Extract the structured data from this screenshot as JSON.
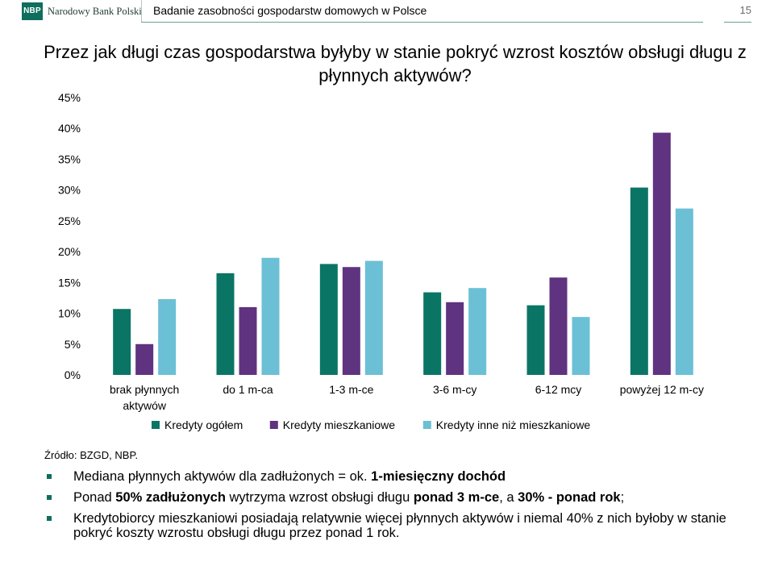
{
  "header": {
    "logo_abbr": "NBP",
    "logo_name": "Narodowy Bank Polski",
    "title": "Badanie zasobności gospodarstw domowych w Polsce",
    "page_number": "15"
  },
  "slide_title": "Przez jak długi czas gospodarstwa byłyby w stanie pokryć wzrost kosztów obsługi długu z płynnych aktywów?",
  "colors": {
    "brand": "#0f6e5e",
    "series1": "#0a7565",
    "series2": "#5f3380",
    "series3": "#6cc0d5"
  },
  "chart_data": {
    "type": "bar",
    "title": "",
    "xlabel": "",
    "ylabel": "",
    "ylim": [
      0,
      45
    ],
    "yticks": [
      "0%",
      "5%",
      "10%",
      "15%",
      "20%",
      "25%",
      "30%",
      "35%",
      "40%",
      "45%"
    ],
    "categories": [
      [
        "brak płynnych",
        "aktywów"
      ],
      [
        "do 1 m-ca"
      ],
      [
        "1-3 m-ce"
      ],
      [
        "3-6 m-cy"
      ],
      [
        "6-12 mcy"
      ],
      [
        "powyżej 12 m-cy"
      ]
    ],
    "series": [
      {
        "name": "Kredyty ogółem",
        "color": "#0a7565",
        "values": [
          10.7,
          16.5,
          18.0,
          13.4,
          11.3,
          30.4
        ]
      },
      {
        "name": "Kredyty mieszkaniowe",
        "color": "#5f3380",
        "values": [
          5.0,
          11.0,
          17.5,
          11.8,
          15.8,
          39.3
        ]
      },
      {
        "name": "Kredyty inne niż mieszkaniowe",
        "color": "#6cc0d5",
        "values": [
          12.3,
          19.0,
          18.5,
          14.1,
          9.4,
          27.0
        ]
      }
    ],
    "grid": false,
    "legend_position": "bottom"
  },
  "source": "Źródło: BZGD, NBP.",
  "bullets": [
    {
      "parts": [
        {
          "text": "Mediana płynnych aktywów dla zadłużonych = ok. ",
          "bold": false
        },
        {
          "text": "1-miesięczny dochód",
          "bold": true
        }
      ]
    },
    {
      "parts": [
        {
          "text": "Ponad ",
          "bold": false
        },
        {
          "text": "50% zadłużonych",
          "bold": true
        },
        {
          "text": " wytrzyma wzrost obsługi długu ",
          "bold": false
        },
        {
          "text": "ponad 3 m-ce",
          "bold": true
        },
        {
          "text": ", a ",
          "bold": false
        },
        {
          "text": "30% - ponad rok",
          "bold": true
        },
        {
          "text": ";",
          "bold": false
        }
      ]
    },
    {
      "parts": [
        {
          "text": "Kredytobiorcy mieszkaniowi posiadają relatywnie więcej płynnych aktywów i niemal 40% z nich byłoby w stanie pokryć koszty wzrostu obsługi długu przez ponad 1 rok.",
          "bold": false
        }
      ]
    }
  ]
}
